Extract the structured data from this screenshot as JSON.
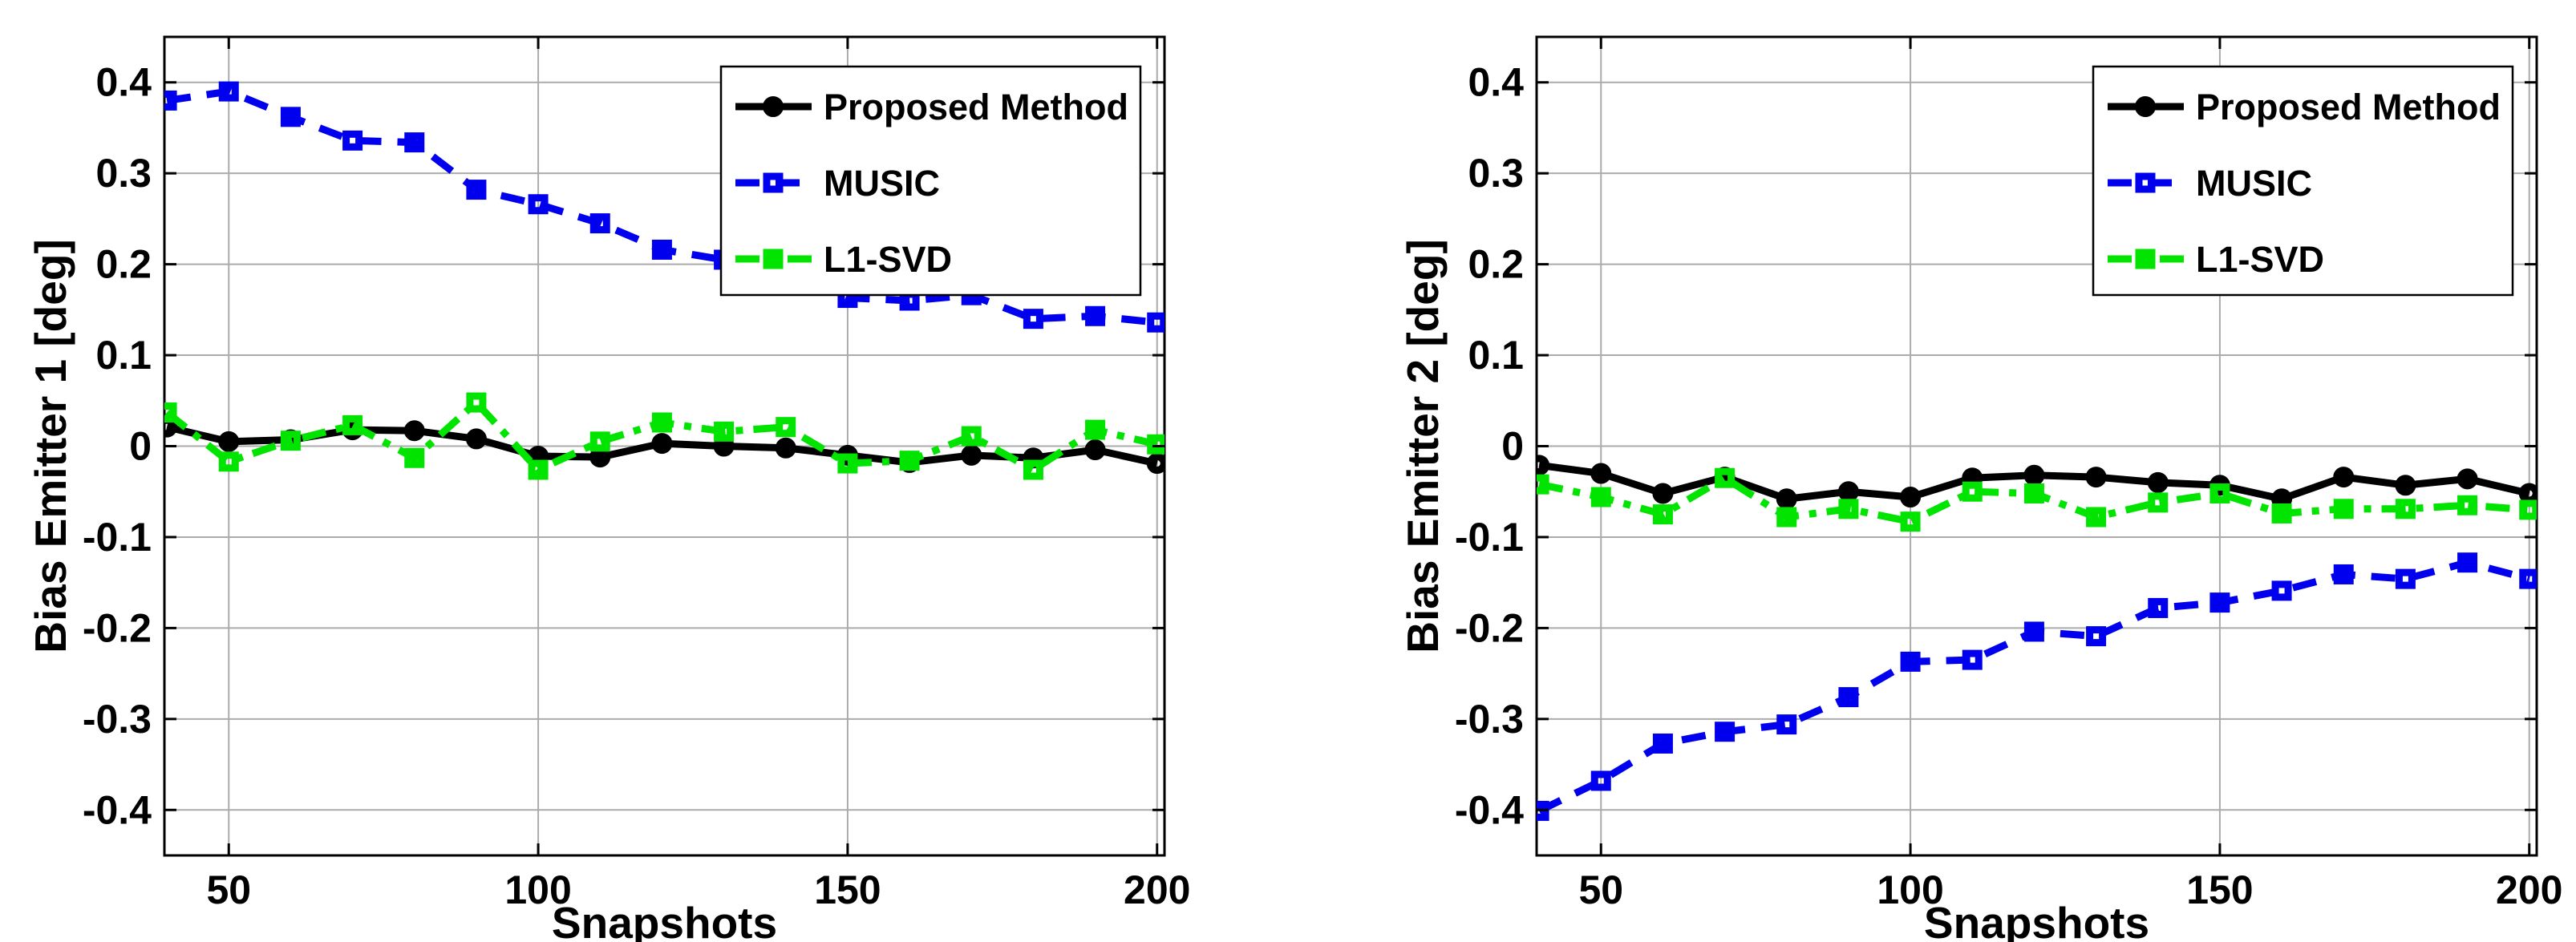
{
  "figure": {
    "background_color": "#ffffff",
    "grid_color": "#ababab",
    "axis_color": "#000000",
    "panel_count": 2
  },
  "chart_data": [
    {
      "type": "line",
      "title": "",
      "xlabel": "Snapshots",
      "ylabel": "Bias Emitter 1 [deg]",
      "xlim": [
        39.6,
        201.2
      ],
      "ylim": [
        -0.45,
        0.45
      ],
      "grid": true,
      "legend_position": "top-right-inside",
      "x_ticks": [
        {
          "value": 50,
          "label": "50"
        },
        {
          "value": 100,
          "label": "100"
        },
        {
          "value": 150,
          "label": "150"
        },
        {
          "value": 200,
          "label": "200"
        }
      ],
      "y_ticks": [
        {
          "value": 0.4,
          "label": "0.4"
        },
        {
          "value": 0.3,
          "label": "0.3"
        },
        {
          "value": 0.2,
          "label": "0.2"
        },
        {
          "value": 0.1,
          "label": "0.1"
        },
        {
          "value": 0,
          "label": "0"
        },
        {
          "value": -0.1,
          "label": "-0.1"
        },
        {
          "value": -0.2,
          "label": "-0.2"
        },
        {
          "value": -0.3,
          "label": "-0.3"
        },
        {
          "value": -0.4,
          "label": "-0.4"
        }
      ],
      "x": [
        40,
        50,
        60,
        70,
        80,
        90,
        100,
        110,
        120,
        130,
        140,
        150,
        160,
        170,
        180,
        190,
        200
      ],
      "series": [
        {
          "name": "Proposed Method",
          "color": "#000000",
          "line_style": "solid",
          "marker": "circle",
          "values": [
            0.021,
            0.005,
            0.007,
            0.018,
            0.017,
            0.008,
            -0.011,
            -0.012,
            0.003,
            0.0,
            -0.002,
            -0.01,
            -0.018,
            -0.01,
            -0.013,
            -0.004,
            -0.019
          ]
        },
        {
          "name": "MUSIC",
          "color": "#0000ee",
          "line_style": "dashed",
          "marker": "square",
          "values": [
            0.38,
            0.39,
            0.362,
            0.336,
            0.334,
            0.282,
            0.266,
            0.245,
            0.216,
            0.205,
            0.19,
            0.163,
            0.16,
            0.166,
            0.14,
            0.143,
            0.136
          ]
        },
        {
          "name": "L1-SVD",
          "color": "#00e400",
          "line_style": "dashdot",
          "marker": "square",
          "values": [
            0.037,
            -0.017,
            0.006,
            0.023,
            -0.013,
            0.048,
            -0.026,
            0.005,
            0.026,
            0.016,
            0.021,
            -0.019,
            -0.016,
            0.011,
            -0.026,
            0.018,
            0.002
          ]
        }
      ]
    },
    {
      "type": "line",
      "title": "",
      "xlabel": "Snapshots",
      "ylabel": "Bias Emitter 2 [deg]",
      "xlim": [
        39.6,
        201.2
      ],
      "ylim": [
        -0.45,
        0.45
      ],
      "grid": true,
      "legend_position": "top-right-inside",
      "x_ticks": [
        {
          "value": 50,
          "label": "50"
        },
        {
          "value": 100,
          "label": "100"
        },
        {
          "value": 150,
          "label": "150"
        },
        {
          "value": 200,
          "label": "200"
        }
      ],
      "y_ticks": [
        {
          "value": 0.4,
          "label": "0.4"
        },
        {
          "value": 0.3,
          "label": "0.3"
        },
        {
          "value": 0.2,
          "label": "0.2"
        },
        {
          "value": 0.1,
          "label": "0.1"
        },
        {
          "value": 0,
          "label": "0"
        },
        {
          "value": -0.1,
          "label": "-0.1"
        },
        {
          "value": -0.2,
          "label": "-0.2"
        },
        {
          "value": -0.3,
          "label": "-0.3"
        },
        {
          "value": -0.4,
          "label": "-0.4"
        }
      ],
      "x": [
        40,
        50,
        60,
        70,
        80,
        90,
        100,
        110,
        120,
        130,
        140,
        150,
        160,
        170,
        180,
        190,
        200
      ],
      "series": [
        {
          "name": "Proposed Method",
          "color": "#000000",
          "line_style": "solid",
          "marker": "circle",
          "values": [
            -0.021,
            -0.03,
            -0.052,
            -0.034,
            -0.058,
            -0.05,
            -0.056,
            -0.035,
            -0.032,
            -0.034,
            -0.04,
            -0.043,
            -0.058,
            -0.034,
            -0.043,
            -0.036,
            -0.052
          ]
        },
        {
          "name": "MUSIC",
          "color": "#0000ee",
          "line_style": "dashed",
          "marker": "square",
          "values": [
            -0.401,
            -0.368,
            -0.327,
            -0.314,
            -0.306,
            -0.276,
            -0.237,
            -0.235,
            -0.204,
            -0.209,
            -0.178,
            -0.172,
            -0.159,
            -0.141,
            -0.146,
            -0.128,
            -0.146
          ]
        },
        {
          "name": "L1-SVD",
          "color": "#00e400",
          "line_style": "dashdot",
          "marker": "square",
          "values": [
            -0.042,
            -0.056,
            -0.075,
            -0.035,
            -0.078,
            -0.069,
            -0.083,
            -0.05,
            -0.052,
            -0.078,
            -0.062,
            -0.052,
            -0.074,
            -0.069,
            -0.069,
            -0.065,
            -0.07
          ]
        }
      ]
    }
  ]
}
